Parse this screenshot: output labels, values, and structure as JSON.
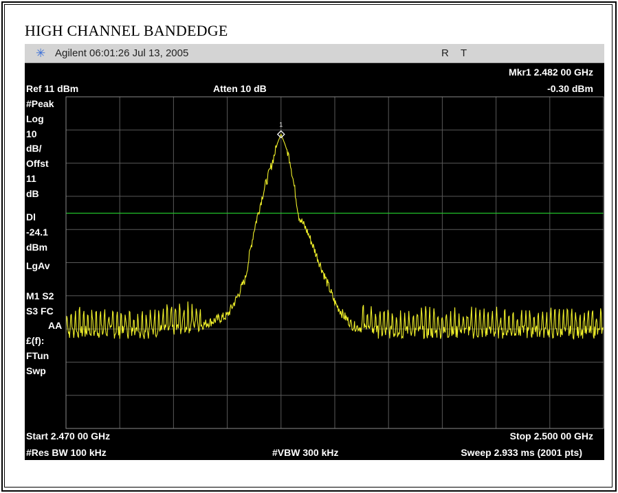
{
  "page_title": "HIGH CHANNEL BANDEDGE",
  "titlebar": {
    "brand": "Agilent",
    "timestamp": "06:01:26  Jul 13, 2005",
    "flag_r": "R",
    "flag_t": "T",
    "burst_icon": "burst-icon",
    "burst_color": "#3a6fd8"
  },
  "header": {
    "marker_label": "Mkr1  2.482 00 GHz",
    "marker_value": "-0.30 dBm",
    "ref_level": "Ref 11 dBm",
    "atten": "Atten 10 dB"
  },
  "sidebar": [
    "#Peak",
    "Log",
    "10",
    "dB/",
    "Offst",
    "11",
    "dB",
    "Dl",
    "-24.1",
    "dBm",
    "LgAv",
    "M1  S2",
    "S3  FC",
    "AA",
    "£(f):",
    "FTun",
    "Swp"
  ],
  "footer": {
    "start": "Start 2.470 00 GHz",
    "stop": "Stop 2.500 00 GHz",
    "rbw": "#Res BW 100 kHz",
    "vbw": "#VBW 300 kHz",
    "sweep": "Sweep 2.933 ms (2001 pts)"
  },
  "chart_data": {
    "type": "line",
    "x_unit": "GHz",
    "y_unit": "dBm",
    "xlim": [
      2.47,
      2.5
    ],
    "ylim": [
      -89,
      11
    ],
    "grid": true,
    "grid_divisions": {
      "x": 10,
      "y": 10
    },
    "display_line": {
      "label": "Dl",
      "value": -24.1,
      "color": "#22c22a"
    },
    "trace_color": "#f0f02a",
    "marker": {
      "id": "1",
      "x": 2.482,
      "y": -0.3
    },
    "series": [
      {
        "x": [
          2.47,
          2.4715,
          2.473,
          2.4745,
          2.476,
          2.4775,
          2.479,
          2.4795,
          2.48,
          2.4805,
          2.481,
          2.4815,
          2.4818,
          2.482,
          2.4822,
          2.4825,
          2.483,
          2.4835,
          2.484,
          2.4845,
          2.485,
          2.4855,
          2.486,
          2.4875,
          2.489,
          2.4905,
          2.492,
          2.4935,
          2.495,
          2.4965,
          2.498,
          2.4995,
          2.5
        ],
        "y": [
          -60,
          -60,
          -60,
          -60,
          -59,
          -58,
          -55,
          -50,
          -44,
          -29,
          -18,
          -9,
          -3,
          -0.3,
          -3,
          -8,
          -25,
          -30,
          -37,
          -44,
          -51,
          -55,
          -58,
          -60,
          -60,
          -60,
          -60,
          -60,
          -60,
          -60,
          -60,
          -60,
          -60
        ]
      }
    ]
  }
}
